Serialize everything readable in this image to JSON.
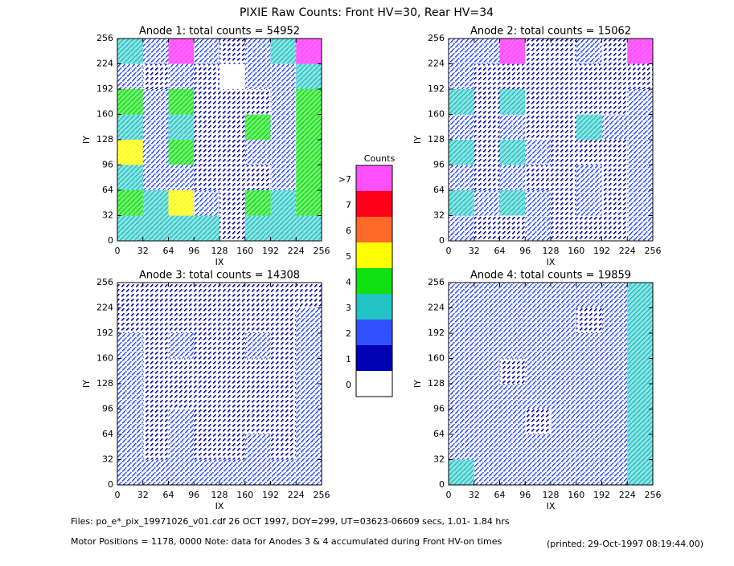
{
  "title": "PIXIE Raw Counts:  Front HV=30, Rear HV=34",
  "colorbar": {
    "title": "Counts",
    "labels": [
      "0",
      "1",
      "2",
      "3",
      "4",
      "5",
      "6",
      "7",
      ">7"
    ],
    "colors": [
      "#ffffff",
      "#0000b4",
      "#3050ff",
      "#20c4c4",
      "#10e010",
      "#ffff00",
      "#ff6a28",
      "#ff0018",
      "#ff50ff"
    ]
  },
  "footer": {
    "files": "Files: po_e*_pix_19971026_v01.cdf    26 OCT 1997, DOY=299, UT=03623-06609 secs,  1.01- 1.84 hrs",
    "motor": "Motor Positions = 1178, 0000    Note: data for Anodes 3 & 4 accumulated during Front HV-on times",
    "printed": "(printed: 29-Oct-1997 08:19:44.00)"
  },
  "chart_data": [
    {
      "type": "heatmap",
      "title": "Anode 1: total counts = 54952",
      "x_label": "IX",
      "y_label": "IY",
      "xlim": [
        0,
        256
      ],
      "ylim": [
        0,
        256
      ],
      "xticks": [
        0,
        32,
        64,
        96,
        128,
        160,
        192,
        224,
        256
      ],
      "yticks": [
        0,
        32,
        64,
        96,
        128,
        160,
        192,
        224,
        256
      ],
      "z": [
        [
          3,
          3,
          3,
          3,
          1,
          3,
          3,
          3
        ],
        [
          4,
          3,
          5,
          2,
          1,
          4,
          3,
          4
        ],
        [
          3,
          2,
          2,
          1,
          1,
          1,
          2,
          4
        ],
        [
          5,
          2,
          4,
          1,
          1,
          2,
          2,
          4
        ],
        [
          3,
          2,
          3,
          1,
          1,
          4,
          2,
          4
        ],
        [
          4,
          2,
          4,
          1,
          1,
          1,
          2,
          4
        ],
        [
          2,
          1,
          2,
          1,
          0,
          2,
          2,
          3
        ],
        [
          3,
          2,
          8,
          2,
          1,
          2,
          3,
          8
        ]
      ]
    },
    {
      "type": "heatmap",
      "title": "Anode 2: total counts = 15062",
      "x_label": "IX",
      "y_label": "IY",
      "xlim": [
        0,
        256
      ],
      "ylim": [
        0,
        256
      ],
      "xticks": [
        0,
        32,
        64,
        96,
        128,
        160,
        192,
        224,
        256
      ],
      "yticks": [
        0,
        32,
        64,
        96,
        128,
        160,
        192,
        224,
        256
      ],
      "z": [
        [
          2,
          1,
          1,
          2,
          1,
          1,
          1,
          2
        ],
        [
          3,
          2,
          3,
          2,
          1,
          2,
          1,
          2
        ],
        [
          2,
          1,
          2,
          1,
          1,
          2,
          1,
          2
        ],
        [
          3,
          1,
          3,
          2,
          1,
          1,
          1,
          2
        ],
        [
          2,
          1,
          2,
          1,
          1,
          3,
          2,
          2
        ],
        [
          3,
          1,
          3,
          1,
          1,
          1,
          1,
          2
        ],
        [
          2,
          1,
          1,
          1,
          1,
          1,
          1,
          1
        ],
        [
          2,
          2,
          8,
          1,
          1,
          2,
          1,
          8
        ]
      ]
    },
    {
      "type": "heatmap",
      "title": "Anode 3: total counts = 14308",
      "x_label": "IX",
      "y_label": "IY",
      "xlim": [
        0,
        256
      ],
      "ylim": [
        0,
        256
      ],
      "xticks": [
        0,
        32,
        64,
        96,
        128,
        160,
        192,
        224,
        256
      ],
      "yticks": [
        0,
        32,
        64,
        96,
        128,
        160,
        192,
        224,
        256
      ],
      "z": [
        [
          2,
          2,
          2,
          2,
          2,
          2,
          2,
          2
        ],
        [
          2,
          1,
          2,
          1,
          1,
          2,
          1,
          2
        ],
        [
          2,
          1,
          2,
          1,
          1,
          1,
          1,
          2
        ],
        [
          2,
          1,
          1,
          1,
          1,
          1,
          1,
          2
        ],
        [
          2,
          1,
          1,
          1,
          1,
          1,
          1,
          2
        ],
        [
          2,
          1,
          2,
          1,
          1,
          2,
          1,
          2
        ],
        [
          1,
          1,
          1,
          1,
          1,
          1,
          1,
          2
        ],
        [
          1,
          1,
          1,
          1,
          1,
          1,
          1,
          1
        ]
      ]
    },
    {
      "type": "heatmap",
      "title": "Anode 4: total counts = 19859",
      "x_label": "IX",
      "y_label": "IY",
      "xlim": [
        0,
        256
      ],
      "ylim": [
        0,
        256
      ],
      "xticks": [
        0,
        32,
        64,
        96,
        128,
        160,
        192,
        224,
        256
      ],
      "yticks": [
        0,
        32,
        64,
        96,
        128,
        160,
        192,
        224,
        256
      ],
      "z": [
        [
          3,
          2,
          2,
          2,
          2,
          2,
          2,
          3
        ],
        [
          2,
          2,
          2,
          2,
          2,
          2,
          2,
          3
        ],
        [
          2,
          2,
          2,
          1,
          2,
          2,
          2,
          3
        ],
        [
          2,
          2,
          2,
          2,
          2,
          2,
          2,
          3
        ],
        [
          2,
          2,
          1,
          2,
          2,
          2,
          2,
          3
        ],
        [
          2,
          2,
          2,
          2,
          2,
          2,
          2,
          3
        ],
        [
          2,
          2,
          2,
          2,
          2,
          1,
          2,
          3
        ],
        [
          2,
          2,
          2,
          2,
          2,
          2,
          2,
          3
        ]
      ]
    }
  ]
}
